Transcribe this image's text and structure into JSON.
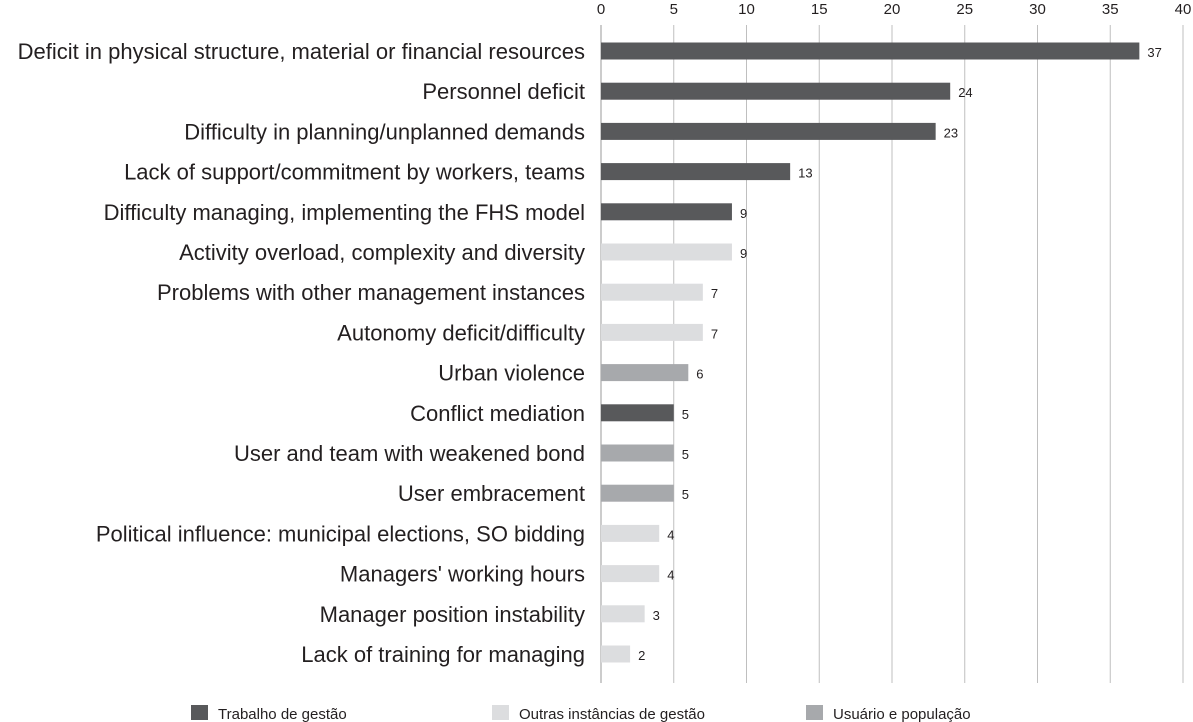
{
  "chart_data": {
    "type": "bar",
    "orientation": "horizontal",
    "title": "",
    "xlabel": "",
    "ylabel": "",
    "xlim": [
      0,
      40
    ],
    "x_ticks": [
      0,
      5,
      10,
      15,
      20,
      25,
      30,
      35,
      40
    ],
    "x_axis_position": "top",
    "grid": true,
    "legend_position": "bottom",
    "series": [
      {
        "name": "Trabalho de gestão",
        "color": "#58595b"
      },
      {
        "name": "Outras instâncias de gestão",
        "color": "#dcdddf"
      },
      {
        "name": "Usuário e população",
        "color": "#a7a9ac"
      }
    ],
    "bars": [
      {
        "category": "Deficit in physical structure, material or financial resources",
        "value": 37,
        "series": 0
      },
      {
        "category": "Personnel deficit",
        "value": 24,
        "series": 0
      },
      {
        "category": "Difficulty in planning/unplanned demands",
        "value": 23,
        "series": 0
      },
      {
        "category": "Lack of support/commitment by workers, teams",
        "value": 13,
        "series": 0
      },
      {
        "category": "Difficulty managing, implementing the FHS model",
        "value": 9,
        "series": 0
      },
      {
        "category": "Activity overload, complexity and diversity",
        "value": 9,
        "series": 1
      },
      {
        "category": "Problems with other management instances",
        "value": 7,
        "series": 1
      },
      {
        "category": "Autonomy deficit/difficulty",
        "value": 7,
        "series": 1
      },
      {
        "category": "Urban violence",
        "value": 6,
        "series": 2
      },
      {
        "category": "Conflict mediation",
        "value": 5,
        "series": 0
      },
      {
        "category": "User and team with weakened bond",
        "value": 5,
        "series": 2
      },
      {
        "category": "User embracement",
        "value": 5,
        "series": 2
      },
      {
        "category": "Political influence: municipal elections, SO bidding",
        "value": 4,
        "series": 1
      },
      {
        "category": "Managers' working hours",
        "value": 4,
        "series": 1
      },
      {
        "category": "Manager position instability",
        "value": 3,
        "series": 1
      },
      {
        "category": "Lack of training for managing",
        "value": 2,
        "series": 1
      }
    ]
  }
}
